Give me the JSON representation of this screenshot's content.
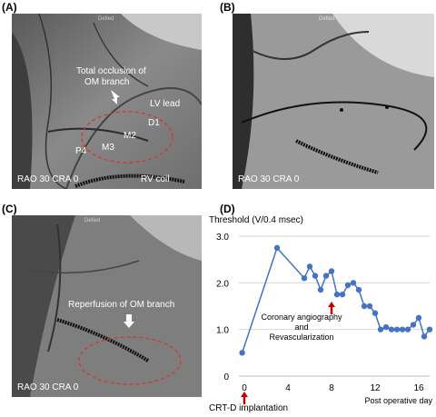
{
  "panels": {
    "a": {
      "label": "(A)",
      "texts": {
        "occlusion_1": "Total occlusion of",
        "occlusion_2": "OM branch",
        "lv_lead": "LV lead",
        "d1": "D1",
        "m2": "M2",
        "m3": "M3",
        "p4": "P4",
        "rv_coil": "RV coil",
        "view": "RAO 30 CRA 0",
        "stamp": "Defied"
      }
    },
    "b": {
      "label": "(B)",
      "view": "RAO 30 CRA 0",
      "stamp": "Defied"
    },
    "c": {
      "label": "(C)",
      "reperfusion": "Reperfusion of OM branch",
      "view": "RAO 30 CRA 0",
      "stamp": "Defied"
    },
    "d": {
      "label": "(D)"
    }
  },
  "colors": {
    "marker_red": "#c00000",
    "series_blue": "#4472c4",
    "ellipse_red": "#d9312b"
  },
  "chart_data": {
    "type": "line",
    "ylabel": "Threshold (V/0.4 msec)",
    "xlabel": "Post operative day",
    "xlim": [
      -0.5,
      17
    ],
    "ylim": [
      0,
      3.0
    ],
    "xticks": [
      0,
      4,
      8,
      12,
      16
    ],
    "yticks": [
      0,
      1.0,
      2.0,
      3.0
    ],
    "ytick_labels": [
      "0",
      "1.0",
      "2.0",
      "3.0"
    ],
    "grid": "horizontal",
    "series": [
      {
        "x": [
          -0.2,
          3,
          5.5,
          6,
          6.5,
          7,
          7.5,
          8,
          8.5,
          9,
          9.5,
          10,
          10.5,
          11,
          11.5,
          12,
          12.5,
          13,
          13.5,
          14,
          14.5,
          15,
          15.5,
          16,
          16.5,
          17
        ],
        "y": [
          0.5,
          2.75,
          2.1,
          2.35,
          2.15,
          1.85,
          2.15,
          2.25,
          1.75,
          1.75,
          1.95,
          2.0,
          1.85,
          1.5,
          1.5,
          1.35,
          1.0,
          1.05,
          1.0,
          1.0,
          1.0,
          1.0,
          1.1,
          1.25,
          0.85,
          1.0
        ]
      }
    ],
    "annotations": [
      {
        "text": "Coronary angiography",
        "x": 8
      },
      {
        "text": "and",
        "x": 8
      },
      {
        "text": "Revascularization",
        "x": 8
      },
      {
        "text": "CRT-D implantation",
        "x": 0
      }
    ]
  }
}
